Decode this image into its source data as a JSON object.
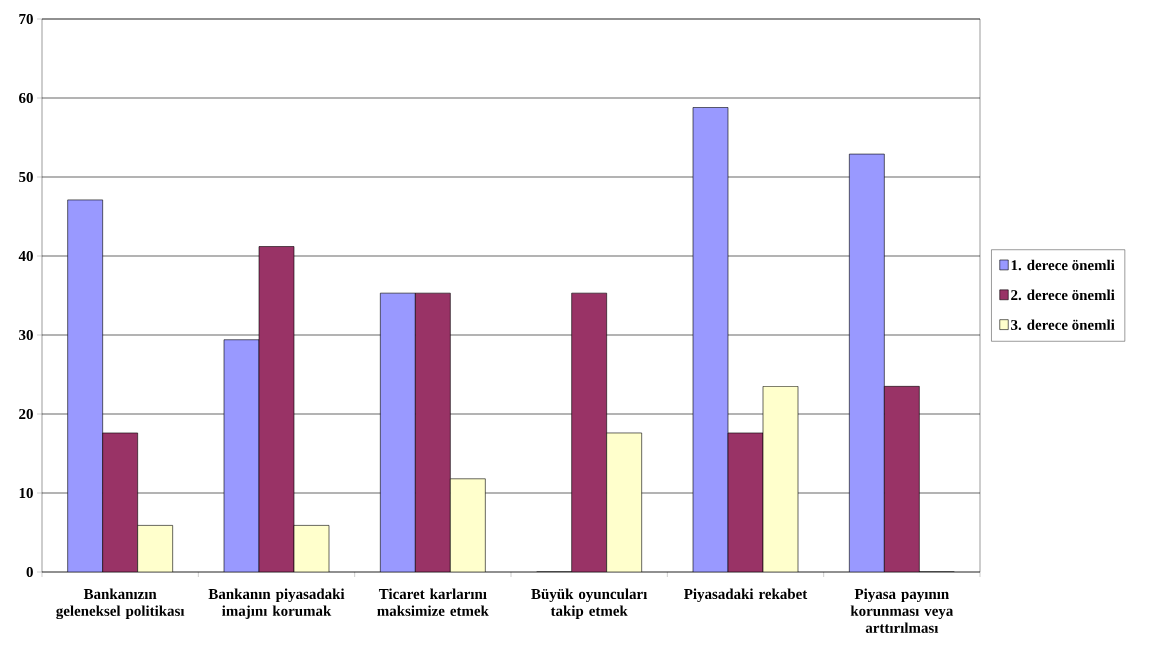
{
  "chart_data": {
    "type": "bar",
    "categories": [
      "Bankanızın geleneksel politikası",
      "Bankanın piyasadaki imajını korumak",
      "Ticaret karlarını maksimize etmek",
      "Büyük oyuncuları takip etmek",
      "Piyasadaki rekabet",
      "Piyasa payının korunması veya arttırılması"
    ],
    "series": [
      {
        "name": "1. derece önemli",
        "color": "#9999ff",
        "values": [
          47.1,
          29.4,
          35.3,
          0,
          58.8,
          52.9
        ]
      },
      {
        "name": "2. derece önemli",
        "color": "#993366",
        "values": [
          17.6,
          41.2,
          35.3,
          35.3,
          17.6,
          23.5
        ]
      },
      {
        "name": "3. derece önemli",
        "color": "#ffffcc",
        "values": [
          5.9,
          5.9,
          11.8,
          17.6,
          23.5,
          0
        ]
      }
    ],
    "ylim": [
      0,
      70
    ],
    "yticks": [
      0,
      10,
      20,
      30,
      40,
      50,
      60,
      70
    ],
    "grid": "y",
    "legend": "right"
  }
}
